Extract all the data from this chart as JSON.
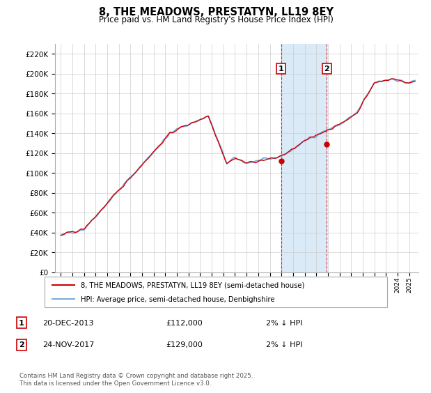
{
  "title": "8, THE MEADOWS, PRESTATYN, LL19 8EY",
  "subtitle": "Price paid vs. HM Land Registry's House Price Index (HPI)",
  "legend_line1": "8, THE MEADOWS, PRESTATYN, LL19 8EY (semi-detached house)",
  "legend_line2": "HPI: Average price, semi-detached house, Denbighshire",
  "footnote": "Contains HM Land Registry data © Crown copyright and database right 2025.\nThis data is licensed under the Open Government Licence v3.0.",
  "sale1_date": "20-DEC-2013",
  "sale1_price": 112000,
  "sale1_label": "2% ↓ HPI",
  "sale2_date": "24-NOV-2017",
  "sale2_price": 129000,
  "sale2_label": "2% ↓ HPI",
  "sale1_x": 2013.97,
  "sale2_x": 2017.9,
  "hpi_color": "#7aaadd",
  "price_color": "#cc0000",
  "shading_color": "#daeaf7",
  "marker_color": "#cc0000",
  "ylim_min": 0,
  "ylim_max": 230000,
  "xlim_min": 1994.5,
  "xlim_max": 2025.8
}
